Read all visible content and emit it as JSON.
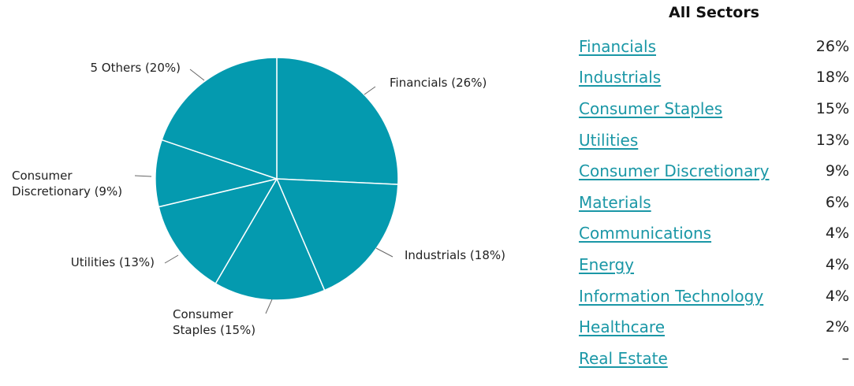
{
  "chart_data": {
    "type": "pie",
    "slices": [
      {
        "label": "Financials (26%)",
        "value": 26
      },
      {
        "label": "Industrials (18%)",
        "value": 18
      },
      {
        "label": "Consumer Staples (15%)",
        "value": 15
      },
      {
        "label": "Utilities (13%)",
        "value": 13
      },
      {
        "label": "Consumer Discretionary (9%)",
        "value": 9
      },
      {
        "label": "5 Others (20%)",
        "value": 20
      }
    ],
    "color": "#049aaf",
    "start_angle_deg": 0,
    "direction": "clockwise"
  },
  "sector_panel": {
    "title": "All Sectors",
    "items": [
      {
        "name": "Financials",
        "value": "26%"
      },
      {
        "name": "Industrials",
        "value": "18%"
      },
      {
        "name": "Consumer Staples",
        "value": "15%"
      },
      {
        "name": "Utilities",
        "value": "13%"
      },
      {
        "name": "Consumer Discretionary",
        "value": "9%"
      },
      {
        "name": "Materials",
        "value": "6%"
      },
      {
        "name": "Communications",
        "value": "4%"
      },
      {
        "name": "Energy",
        "value": "4%"
      },
      {
        "name": "Information Technology",
        "value": "4%"
      },
      {
        "name": "Healthcare",
        "value": "2%"
      },
      {
        "name": "Real Estate",
        "value": "–"
      }
    ],
    "link_color": "#1a97a6"
  }
}
